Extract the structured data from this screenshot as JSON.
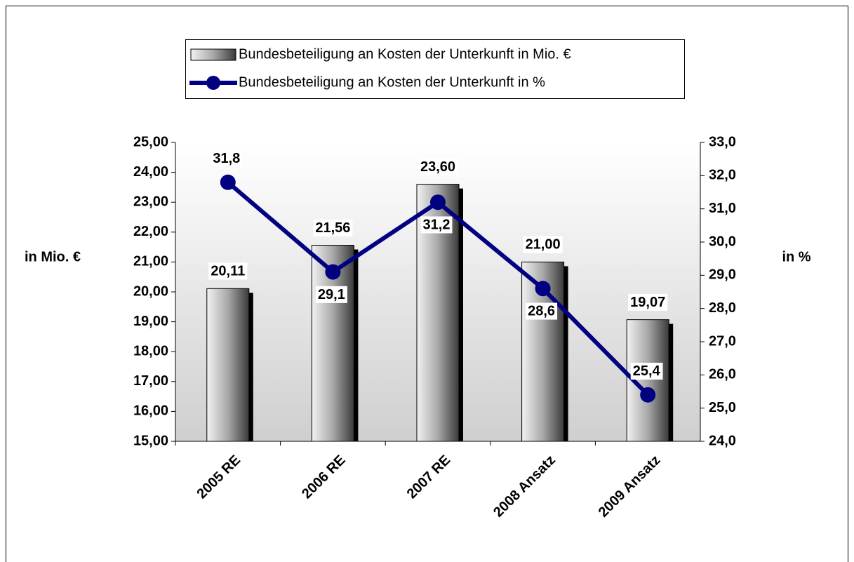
{
  "chart_data": {
    "type": "bar-line",
    "categories": [
      "2005 RE",
      "2006 RE",
      "2007 RE",
      "2008 Ansatz",
      "2009 Ansatz"
    ],
    "series": [
      {
        "name": "Bundesbeteiligung an Kosten der Unterkunft in Mio. €",
        "type": "bar",
        "color": "#a0a0a0",
        "values": [
          20.11,
          21.56,
          23.6,
          21.0,
          19.07
        ],
        "value_labels": [
          "20,11",
          "21,56",
          "23,60",
          "21,00",
          "19,07"
        ]
      },
      {
        "name": "Bundesbeteiligung an Kosten der Unterkunft in %",
        "type": "line",
        "axis": "y2",
        "color": "#000080",
        "values": [
          31.8,
          29.1,
          31.2,
          28.6,
          25.4
        ],
        "value_labels": [
          "31,8",
          "29,1",
          "31,2",
          "28,6",
          "25,4"
        ]
      }
    ],
    "ylabel": "in Mio. €",
    "y2label": "in %",
    "ylim": [
      15,
      25
    ],
    "yticks": [
      {
        "value": 15,
        "label": "15,00"
      },
      {
        "value": 16,
        "label": "16,00"
      },
      {
        "value": 17,
        "label": "17,00"
      },
      {
        "value": 18,
        "label": "18,00"
      },
      {
        "value": 19,
        "label": "19,00"
      },
      {
        "value": 20,
        "label": "20,00"
      },
      {
        "value": 21,
        "label": "21,00"
      },
      {
        "value": 22,
        "label": "22,00"
      },
      {
        "value": 23,
        "label": "23,00"
      },
      {
        "value": 24,
        "label": "24,00"
      },
      {
        "value": 25,
        "label": "25,00"
      }
    ],
    "y2lim": [
      24,
      33
    ],
    "y2ticks": [
      {
        "value": 24,
        "label": "24,0"
      },
      {
        "value": 25,
        "label": "25,0"
      },
      {
        "value": 26,
        "label": "26,0"
      },
      {
        "value": 27,
        "label": "27,0"
      },
      {
        "value": 28,
        "label": "28,0"
      },
      {
        "value": 29,
        "label": "29,0"
      },
      {
        "value": 30,
        "label": "30,0"
      },
      {
        "value": 31,
        "label": "31,0"
      },
      {
        "value": 32,
        "label": "32,0"
      },
      {
        "value": 33,
        "label": "33,0"
      }
    ],
    "legend": "top"
  }
}
